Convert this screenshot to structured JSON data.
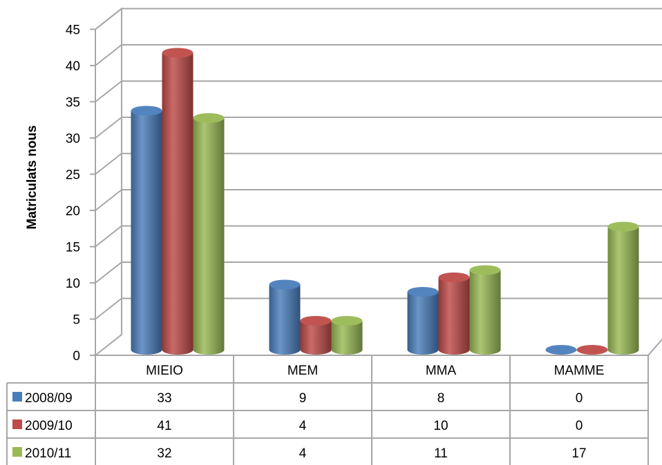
{
  "chart_data": {
    "type": "bar",
    "style": "3d-cylinder-with-data-table",
    "ylabel": "Matriculats nous",
    "xlabel": "",
    "title": "",
    "ylim": [
      0,
      45
    ],
    "yticks": [
      0,
      5,
      10,
      15,
      20,
      25,
      30,
      35,
      40,
      45
    ],
    "grid": true,
    "legend": "data-table-left",
    "categories": [
      "MIEIO",
      "MEM",
      "MMA",
      "MAMME"
    ],
    "series": [
      {
        "name": "2008/09",
        "color": "#4a7ebb",
        "values": [
          33,
          9,
          8,
          0
        ]
      },
      {
        "name": "2009/10",
        "color": "#be4b48",
        "values": [
          41,
          4,
          10,
          0
        ]
      },
      {
        "name": "2010/11",
        "color": "#98b954",
        "values": [
          32,
          4,
          11,
          17
        ]
      }
    ]
  }
}
